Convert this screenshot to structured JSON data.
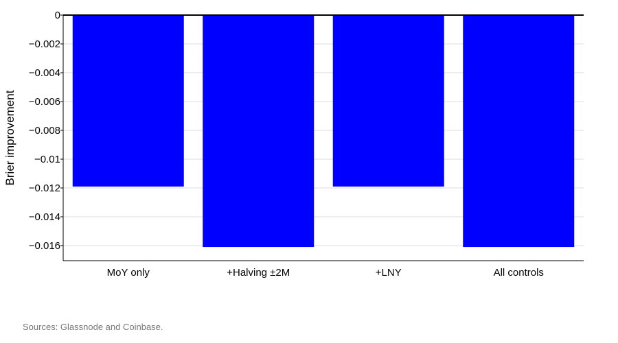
{
  "chart_data": {
    "type": "bar",
    "categories": [
      "MoY only",
      "+Halving ±2M",
      "+LNY",
      "All controls"
    ],
    "values": [
      -0.0119,
      -0.0161,
      -0.0119,
      -0.0161
    ],
    "title": "",
    "xlabel": "",
    "ylabel": "Brier improvement",
    "ylim": [
      -0.017,
      0
    ],
    "yticks": [
      0,
      -0.002,
      -0.004,
      -0.006,
      -0.008,
      -0.01,
      -0.012,
      -0.014,
      -0.016
    ],
    "ytick_labels": [
      "0",
      "−0.002",
      "−0.004",
      "−0.006",
      "−0.008",
      "−0.01",
      "−0.012",
      "−0.014",
      "−0.016"
    ],
    "grid": "horizontal",
    "bar_color": "#0000ff",
    "grid_color": "#dddddd"
  },
  "source_note": "Sources: Glassnode and Coinbase."
}
